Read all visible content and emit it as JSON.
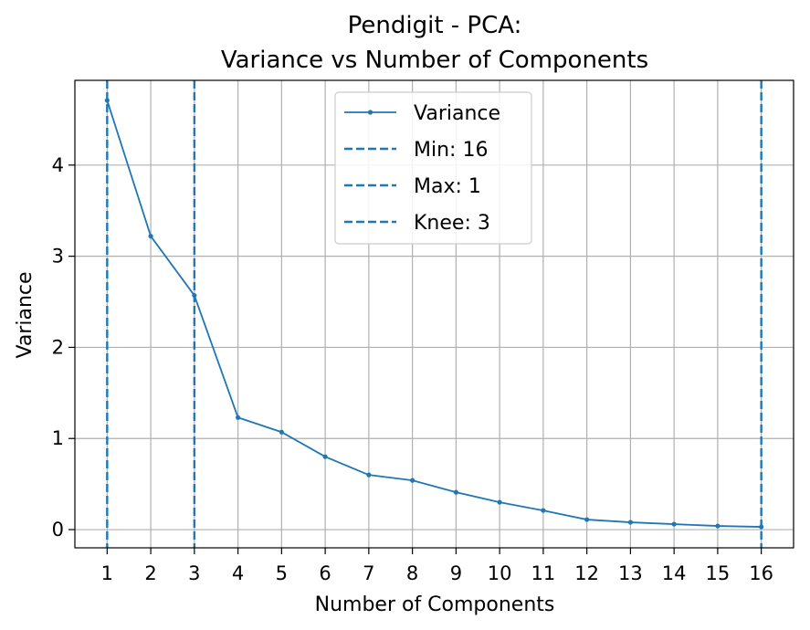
{
  "chart_data": {
    "type": "line",
    "title_line1": "Pendigit - PCA:",
    "title_line2": "Variance vs Number of Components",
    "xlabel": "Number of Components",
    "ylabel": "Variance",
    "xlim": [
      0.26,
      16.74
    ],
    "ylim": [
      -0.2,
      4.93
    ],
    "xticks": [
      1,
      2,
      3,
      4,
      5,
      6,
      7,
      8,
      9,
      10,
      11,
      12,
      13,
      14,
      15,
      16
    ],
    "yticks": [
      0,
      1,
      2,
      3,
      4
    ],
    "grid": true,
    "legend_position": "upper center",
    "series": [
      {
        "name": "Variance",
        "color": "#1f77b4",
        "x": [
          1,
          2,
          3,
          4,
          5,
          6,
          7,
          8,
          9,
          10,
          11,
          12,
          13,
          14,
          15,
          16
        ],
        "values": [
          4.71,
          3.22,
          2.57,
          1.23,
          1.07,
          0.8,
          0.6,
          0.54,
          0.41,
          0.3,
          0.21,
          0.11,
          0.08,
          0.06,
          0.04,
          0.03
        ]
      }
    ],
    "vlines": [
      {
        "label": "Min: 16",
        "x": 16,
        "color": "#1f77b4"
      },
      {
        "label": "Max: 1",
        "x": 1,
        "color": "#1f77b4"
      },
      {
        "label": "Knee: 3",
        "x": 3,
        "color": "#1f77b4"
      }
    ]
  }
}
